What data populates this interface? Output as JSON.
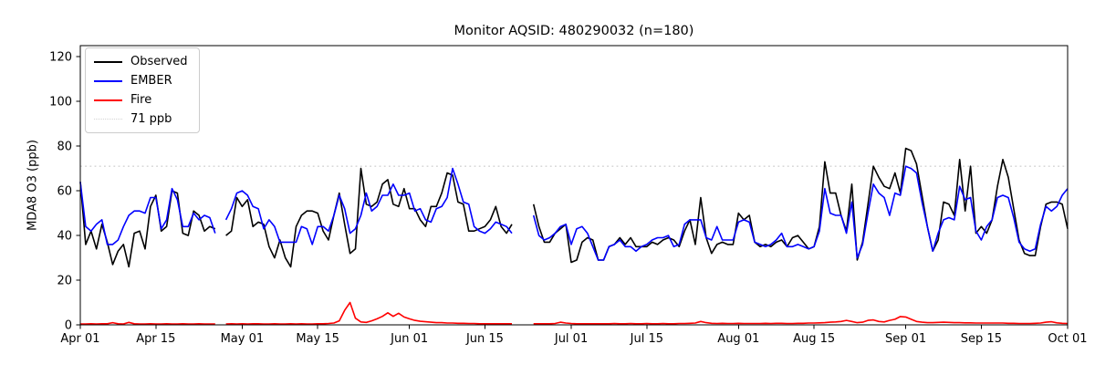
{
  "chart_data": {
    "type": "line",
    "title": "Monitor AQSID: 480290032 (n=180)",
    "xlabel": "",
    "ylabel": "MDA8 O3 (ppb)",
    "ylim": [
      0,
      125
    ],
    "yticks": [
      0,
      20,
      40,
      60,
      80,
      100,
      120
    ],
    "x_start": "Apr 01",
    "x_end": "Oct 01",
    "n_days": 184,
    "x_tick_labels": [
      "Apr 01",
      "Apr 15",
      "May 01",
      "May 15",
      "Jun 01",
      "Jun 15",
      "Jul 01",
      "Jul 15",
      "Aug 01",
      "Aug 15",
      "Sep 01",
      "Sep 15",
      "Oct 01"
    ],
    "x_tick_indices": [
      0,
      14,
      30,
      44,
      61,
      75,
      91,
      105,
      122,
      136,
      153,
      167,
      183
    ],
    "grid": false,
    "legend_position": "upper-left",
    "missing_dates": [
      "Apr 27",
      "Jun 21",
      "Jun 22",
      "Jun 23"
    ],
    "reference_line": {
      "label": "71 ppb",
      "value": 71,
      "color": "#d3d3d3",
      "style": "dotted"
    },
    "series": [
      {
        "name": "Observed",
        "color": "#000000",
        "style": "solid",
        "values": [
          64,
          36,
          42,
          34,
          45,
          37,
          27,
          33,
          36,
          26,
          41,
          42,
          34,
          53,
          58,
          42,
          44,
          60,
          59,
          41,
          40,
          51,
          49,
          42,
          44,
          43,
          null,
          40,
          42,
          57,
          53,
          56,
          44,
          46,
          45,
          35,
          30,
          38,
          30,
          26,
          44,
          49,
          51,
          51,
          50,
          42,
          38,
          49,
          59,
          45,
          32,
          34,
          70,
          54,
          53,
          55,
          63,
          65,
          54,
          53,
          61,
          52,
          52,
          47,
          44,
          53,
          53,
          59,
          68,
          67,
          55,
          54,
          42,
          42,
          43,
          44,
          47,
          53,
          44,
          41,
          45,
          null,
          null,
          null,
          54,
          44,
          37,
          37,
          41,
          43,
          45,
          28,
          29,
          37,
          39,
          38,
          29,
          29,
          35,
          36,
          39,
          36,
          39,
          35,
          35,
          35,
          37,
          36,
          38,
          39,
          38,
          35,
          42,
          47,
          36,
          57,
          39,
          32,
          36,
          37,
          36,
          36,
          50,
          47,
          49,
          37,
          35,
          36,
          35,
          37,
          38,
          35,
          39,
          40,
          37,
          34,
          35,
          44,
          73,
          59,
          59,
          49,
          42,
          63,
          29,
          37,
          54,
          71,
          66,
          62,
          61,
          68,
          59,
          79,
          78,
          72,
          58,
          44,
          33,
          38,
          55,
          54,
          49,
          74,
          51,
          71,
          41,
          44,
          41,
          47,
          62,
          74,
          66,
          52,
          38,
          32,
          31,
          31,
          44,
          54,
          55,
          55,
          54,
          43
        ]
      },
      {
        "name": "EMBER",
        "color": "#0000ff",
        "style": "solid",
        "values": [
          64,
          44,
          42,
          45,
          47,
          36,
          36,
          38,
          44,
          49,
          51,
          51,
          50,
          57,
          57,
          43,
          47,
          61,
          56,
          44,
          44,
          50,
          47,
          49,
          48,
          41,
          null,
          47,
          52,
          59,
          60,
          58,
          53,
          52,
          43,
          47,
          44,
          37,
          37,
          37,
          37,
          44,
          43,
          36,
          44,
          44,
          42,
          49,
          58,
          52,
          41,
          43,
          49,
          59,
          51,
          53,
          58,
          58,
          63,
          58,
          58,
          59,
          51,
          52,
          47,
          46,
          52,
          53,
          57,
          70,
          63,
          55,
          54,
          44,
          42,
          41,
          43,
          46,
          45,
          44,
          41,
          null,
          null,
          null,
          49,
          40,
          38,
          39,
          41,
          44,
          45,
          36,
          43,
          44,
          41,
          35,
          29,
          29,
          35,
          36,
          38,
          35,
          35,
          33,
          35,
          36,
          38,
          39,
          39,
          40,
          35,
          36,
          45,
          47,
          47,
          47,
          39,
          38,
          44,
          38,
          38,
          38,
          46,
          47,
          46,
          37,
          36,
          35,
          36,
          38,
          41,
          35,
          35,
          36,
          35,
          34,
          35,
          42,
          61,
          50,
          49,
          49,
          41,
          55,
          30,
          36,
          50,
          63,
          59,
          57,
          49,
          59,
          58,
          71,
          70,
          68,
          55,
          44,
          33,
          41,
          47,
          48,
          47,
          62,
          56,
          57,
          42,
          38,
          44,
          47,
          57,
          58,
          57,
          48,
          37,
          34,
          33,
          34,
          45,
          53,
          51,
          53,
          58,
          61
        ]
      },
      {
        "name": "Fire",
        "color": "#ff0000",
        "style": "solid",
        "values": [
          0.4,
          0.4,
          0.5,
          0.4,
          0.5,
          0.5,
          1.0,
          0.5,
          0.4,
          1.1,
          0.5,
          0.4,
          0.4,
          0.5,
          0.4,
          0.4,
          0.5,
          0.4,
          0.4,
          0.5,
          0.4,
          0.4,
          0.5,
          0.4,
          0.4,
          0.4,
          null,
          0.4,
          0.5,
          0.4,
          0.5,
          0.4,
          0.5,
          0.5,
          0.4,
          0.4,
          0.5,
          0.4,
          0.4,
          0.5,
          0.4,
          0.5,
          0.4,
          0.4,
          0.5,
          0.5,
          0.6,
          0.8,
          1.8,
          6.5,
          10.0,
          3.0,
          1.3,
          1.1,
          1.8,
          2.7,
          3.8,
          5.4,
          3.8,
          5.2,
          3.5,
          2.7,
          2.0,
          1.6,
          1.4,
          1.2,
          1.0,
          1.0,
          0.8,
          0.8,
          0.7,
          0.7,
          0.6,
          0.6,
          0.5,
          0.5,
          0.5,
          0.5,
          0.5,
          0.5,
          0.5,
          null,
          null,
          null,
          0.5,
          0.5,
          0.5,
          0.5,
          0.6,
          1.2,
          0.8,
          0.6,
          0.5,
          0.5,
          0.5,
          0.5,
          0.5,
          0.5,
          0.5,
          0.6,
          0.5,
          0.5,
          0.6,
          0.5,
          0.5,
          0.6,
          0.5,
          0.5,
          0.6,
          0.5,
          0.5,
          0.6,
          0.6,
          0.7,
          0.8,
          1.5,
          1.0,
          0.7,
          0.6,
          0.7,
          0.6,
          0.6,
          0.7,
          0.6,
          0.6,
          0.6,
          0.6,
          0.7,
          0.6,
          0.7,
          0.7,
          0.6,
          0.6,
          0.7,
          0.7,
          0.8,
          0.8,
          0.9,
          1.0,
          1.2,
          1.3,
          1.5,
          2.0,
          1.5,
          1.0,
          1.2,
          2.0,
          2.2,
          1.5,
          1.3,
          2.0,
          2.5,
          3.7,
          3.5,
          2.5,
          1.5,
          1.2,
          1.0,
          1.0,
          1.1,
          1.2,
          1.1,
          1.0,
          1.0,
          0.9,
          0.9,
          0.8,
          0.8,
          0.8,
          0.8,
          0.8,
          0.8,
          0.7,
          0.7,
          0.6,
          0.6,
          0.6,
          0.7,
          0.8,
          1.2,
          1.4,
          0.9,
          0.7,
          0.6
        ]
      }
    ]
  },
  "layout_colors": {
    "background": "#ffffff",
    "axis": "#000000",
    "legend_border": "#cccccc"
  }
}
